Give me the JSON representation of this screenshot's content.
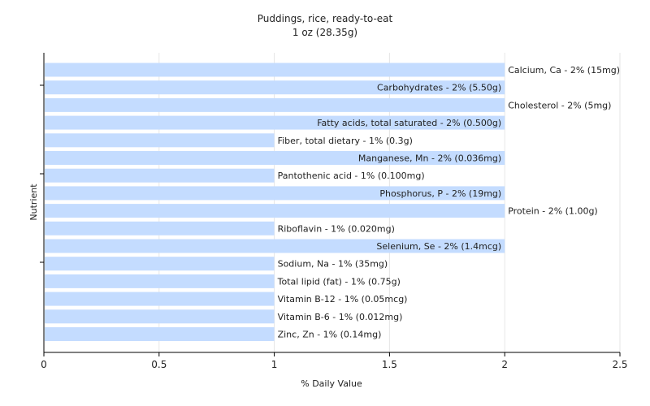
{
  "chart_data": {
    "type": "bar",
    "orientation": "horizontal",
    "title": "Puddings, rice, ready-to-eat",
    "subtitle": "1 oz (28.35g)",
    "xlabel": "% Daily Value",
    "ylabel": "Nutrient",
    "xlim": [
      0,
      2.5
    ],
    "xticks": [
      "0",
      "0.5",
      "1",
      "1.5",
      "2",
      "2.5"
    ],
    "grid": true,
    "bar_color": "#c4dcff",
    "categories": [
      "Calcium, Ca",
      "Carbohydrates",
      "Cholesterol",
      "Fatty acids, total saturated",
      "Fiber, total dietary",
      "Manganese, Mn",
      "Pantothenic acid",
      "Phosphorus, P",
      "Protein",
      "Riboflavin",
      "Selenium, Se",
      "Sodium, Na",
      "Total lipid (fat)",
      "Vitamin B-12",
      "Vitamin B-6",
      "Zinc, Zn"
    ],
    "values": [
      2,
      2,
      2,
      2,
      1,
      2,
      1,
      2,
      2,
      1,
      2,
      1,
      1,
      1,
      1,
      1
    ],
    "labels": [
      "Calcium, Ca - 2% (15mg)",
      "Carbohydrates - 2% (5.50g)",
      "Cholesterol - 2% (5mg)",
      "Fatty acids, total saturated - 2% (0.500g)",
      "Fiber, total dietary - 1% (0.3g)",
      "Manganese, Mn - 2% (0.036mg)",
      "Pantothenic acid - 1% (0.100mg)",
      "Phosphorus, P - 2% (19mg)",
      "Protein - 2% (1.00g)",
      "Riboflavin - 1% (0.020mg)",
      "Selenium, Se - 2% (1.4mcg)",
      "Sodium, Na - 1% (35mg)",
      "Total lipid (fat) - 1% (0.75g)",
      "Vitamin B-12 - 1% (0.05mcg)",
      "Vitamin B-6 - 1% (0.012mg)",
      "Zinc, Zn - 1% (0.14mg)"
    ],
    "label_placement": [
      "outside",
      "inside",
      "outside",
      "inside",
      "outside",
      "inside",
      "outside",
      "inside",
      "outside",
      "outside",
      "inside",
      "outside",
      "outside",
      "outside",
      "outside",
      "outside"
    ]
  }
}
